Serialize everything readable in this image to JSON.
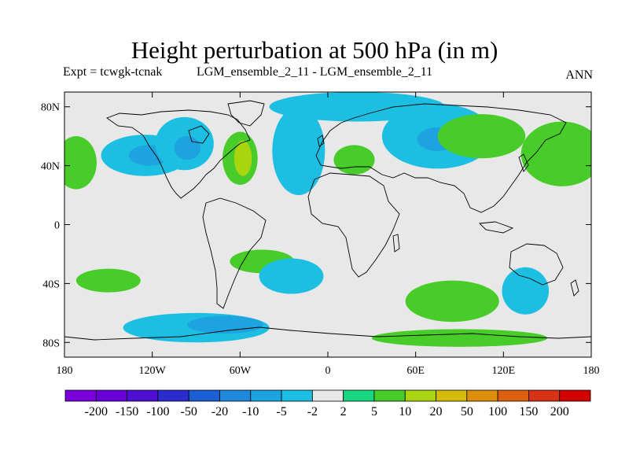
{
  "title": "Height perturbation at 500 hPa (in m)",
  "expt": "Expt = tcwgk-tcnak",
  "case_label": "LGM_ensemble_2_11 - LGM_ensemble_2_11",
  "season": "ANN",
  "lat_labels": [
    "80N",
    "40N",
    "0",
    "40S",
    "80S"
  ],
  "lat_values": [
    80,
    40,
    0,
    -40,
    -80
  ],
  "lon_labels": [
    "180",
    "120W",
    "60W",
    "0",
    "60E",
    "120E",
    "180"
  ],
  "lon_values": [
    -180,
    -120,
    -60,
    0,
    60,
    120,
    180
  ],
  "colorbar": {
    "colors": [
      "#7a00dc",
      "#6a00d8",
      "#4d10d0",
      "#2a2ccc",
      "#1c5ed4",
      "#1e88dc",
      "#1da3df",
      "#1cbfe2",
      "#e8e8e8",
      "#16d67e",
      "#48cc2a",
      "#a8d410",
      "#d6ba08",
      "#dc8e0c",
      "#dc6010",
      "#d63216",
      "#d20000"
    ],
    "labels": [
      "-200",
      "-150",
      "-100",
      "-50",
      "-20",
      "-10",
      "-5",
      "-2",
      "2",
      "5",
      "10",
      "20",
      "50",
      "100",
      "150",
      "200"
    ]
  },
  "field_blobs": [
    {
      "name": "n-pacific-negative",
      "lon": -125,
      "lat": 47,
      "rx": 30,
      "ry": 14,
      "value": -5
    },
    {
      "name": "n-pacific-core",
      "lon": -122,
      "lat": 47,
      "rx": 14,
      "ry": 7,
      "value": -10
    },
    {
      "name": "hudson-negative",
      "lon": -98,
      "lat": 55,
      "rx": 20,
      "ry": 18,
      "value": -5
    },
    {
      "name": "hudson-core",
      "lon": -96,
      "lat": 52,
      "rx": 9,
      "ry": 8,
      "value": -10
    },
    {
      "name": "atlantic-negative",
      "lon": -20,
      "lat": 50,
      "rx": 18,
      "ry": 30,
      "value": -5
    },
    {
      "name": "siberia-negative",
      "lon": 75,
      "lat": 60,
      "rx": 38,
      "ry": 22,
      "value": -5
    },
    {
      "name": "siberia-core",
      "lon": 75,
      "lat": 58,
      "rx": 14,
      "ry": 8,
      "value": -10
    },
    {
      "name": "arctic-negative",
      "lon": 20,
      "lat": 80,
      "rx": 60,
      "ry": 10,
      "value": -5
    },
    {
      "name": "n-pacific-positive",
      "lon": -172,
      "lat": 42,
      "rx": 14,
      "ry": 18,
      "value": 5
    },
    {
      "name": "w-pacific-positive",
      "lon": 160,
      "lat": 48,
      "rx": 28,
      "ry": 22,
      "value": 5
    },
    {
      "name": "e-canada-positive",
      "lon": -60,
      "lat": 45,
      "rx": 12,
      "ry": 18,
      "value": 5
    },
    {
      "name": "e-canada-core",
      "lon": -58,
      "lat": 45,
      "rx": 6,
      "ry": 12,
      "value": 10
    },
    {
      "name": "east-asia-positive",
      "lon": 105,
      "lat": 60,
      "rx": 30,
      "ry": 15,
      "value": 5
    },
    {
      "name": "med-positive",
      "lon": 18,
      "lat": 44,
      "rx": 14,
      "ry": 10,
      "value": 5
    },
    {
      "name": "s-pacific-positive",
      "lon": -150,
      "lat": -38,
      "rx": 22,
      "ry": 8,
      "value": 5
    },
    {
      "name": "s-atlantic-positive",
      "lon": -45,
      "lat": -25,
      "rx": 22,
      "ry": 8,
      "value": 5
    },
    {
      "name": "s-america-negative",
      "lon": -25,
      "lat": -35,
      "rx": 22,
      "ry": 12,
      "value": -5
    },
    {
      "name": "s-indian-positive",
      "lon": 85,
      "lat": -52,
      "rx": 32,
      "ry": 14,
      "value": 5
    },
    {
      "name": "australia-negative",
      "lon": 135,
      "lat": -45,
      "rx": 16,
      "ry": 16,
      "value": -5
    },
    {
      "name": "southern-ocean-negative",
      "lon": -90,
      "lat": -70,
      "rx": 50,
      "ry": 10,
      "value": -5
    },
    {
      "name": "southern-ocean-core",
      "lon": -70,
      "lat": -68,
      "rx": 26,
      "ry": 6,
      "value": -10
    },
    {
      "name": "antarctic-positive",
      "lon": 90,
      "lat": -77,
      "rx": 60,
      "ry": 6,
      "value": 5
    }
  ]
}
